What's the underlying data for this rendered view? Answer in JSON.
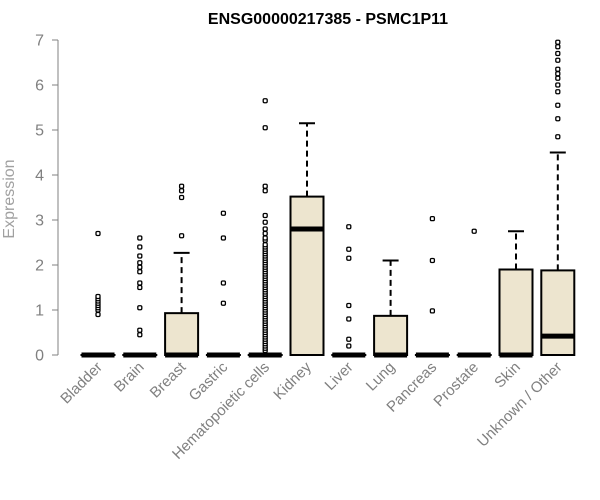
{
  "chart_data": {
    "type": "box",
    "title": "ENSG00000217385 - PSMC1P11",
    "xlabel": "",
    "ylabel": "Expression",
    "ylim": [
      0,
      7
    ],
    "yticks": [
      0,
      1,
      2,
      3,
      4,
      5,
      6,
      7
    ],
    "colors": {
      "box_fill": "#ede5cf",
      "stroke": "#000000",
      "axis": "#808080",
      "tick_text": "#808080"
    },
    "categories": [
      "Bladder",
      "Brain",
      "Breast",
      "Gastric",
      "Hematopoietic cells",
      "Kidney",
      "Liver",
      "Lung",
      "Pancreas",
      "Prostate",
      "Skin",
      "Unknown / Other"
    ],
    "boxes": [
      {
        "q1": 0,
        "median": 0,
        "q3": 0,
        "whisker_low": 0,
        "whisker_high": 0,
        "outliers": [
          0.9,
          1.0,
          1.05,
          1.1,
          1.15,
          1.2,
          1.25,
          1.3,
          2.7
        ]
      },
      {
        "q1": 0,
        "median": 0,
        "q3": 0,
        "whisker_low": 0,
        "whisker_high": 0,
        "outliers": [
          0.45,
          0.55,
          1.05,
          1.5,
          1.6,
          1.85,
          1.95,
          2.05,
          2.2,
          2.4,
          2.6
        ]
      },
      {
        "q1": 0,
        "median": 0,
        "q3": 0.93,
        "whisker_low": 0,
        "whisker_high": 2.27,
        "outliers": [
          2.65,
          3.5,
          3.65,
          3.75
        ]
      },
      {
        "q1": 0,
        "median": 0,
        "q3": 0,
        "whisker_low": 0,
        "whisker_high": 0,
        "outliers": [
          1.15,
          1.6,
          2.6,
          3.15
        ]
      },
      {
        "q1": 0,
        "median": 0,
        "q3": 0,
        "whisker_low": 0,
        "whisker_high": 0,
        "outliers": [
          0.1,
          0.15,
          0.2,
          0.25,
          0.3,
          0.35,
          0.4,
          0.45,
          0.5,
          0.55,
          0.6,
          0.65,
          0.7,
          0.75,
          0.8,
          0.85,
          0.9,
          0.95,
          1.0,
          1.05,
          1.1,
          1.15,
          1.2,
          1.25,
          1.3,
          1.35,
          1.4,
          1.45,
          1.5,
          1.55,
          1.6,
          1.65,
          1.7,
          1.75,
          1.8,
          1.85,
          1.9,
          1.95,
          2.0,
          2.05,
          2.1,
          2.15,
          2.2,
          2.25,
          2.3,
          2.35,
          2.4,
          2.45,
          2.55,
          2.6,
          2.7,
          2.8,
          2.95,
          3.1,
          3.65,
          3.75,
          5.05,
          5.65
        ]
      },
      {
        "q1": 0,
        "median": 2.8,
        "q3": 3.52,
        "whisker_low": 0,
        "whisker_high": 5.15,
        "outliers": []
      },
      {
        "q1": 0,
        "median": 0,
        "q3": 0,
        "whisker_low": 0,
        "whisker_high": 0,
        "outliers": [
          0.2,
          0.35,
          0.8,
          1.1,
          2.15,
          2.35,
          2.85
        ]
      },
      {
        "q1": 0,
        "median": 0,
        "q3": 0.87,
        "whisker_low": 0,
        "whisker_high": 2.1,
        "outliers": []
      },
      {
        "q1": 0,
        "median": 0,
        "q3": 0,
        "whisker_low": 0,
        "whisker_high": 0,
        "outliers": [
          0.98,
          2.1,
          3.03
        ]
      },
      {
        "q1": 0,
        "median": 0,
        "q3": 0,
        "whisker_low": 0,
        "whisker_high": 0,
        "outliers": [
          2.75
        ]
      },
      {
        "q1": 0,
        "median": 0,
        "q3": 1.9,
        "whisker_low": 0,
        "whisker_high": 2.75,
        "outliers": []
      },
      {
        "q1": 0,
        "median": 0.42,
        "q3": 1.88,
        "whisker_low": 0,
        "whisker_high": 4.5,
        "outliers": [
          4.85,
          5.25,
          5.55,
          5.85,
          6.0,
          6.15,
          6.25,
          6.35,
          6.55,
          6.7,
          6.85,
          6.95
        ]
      }
    ]
  }
}
